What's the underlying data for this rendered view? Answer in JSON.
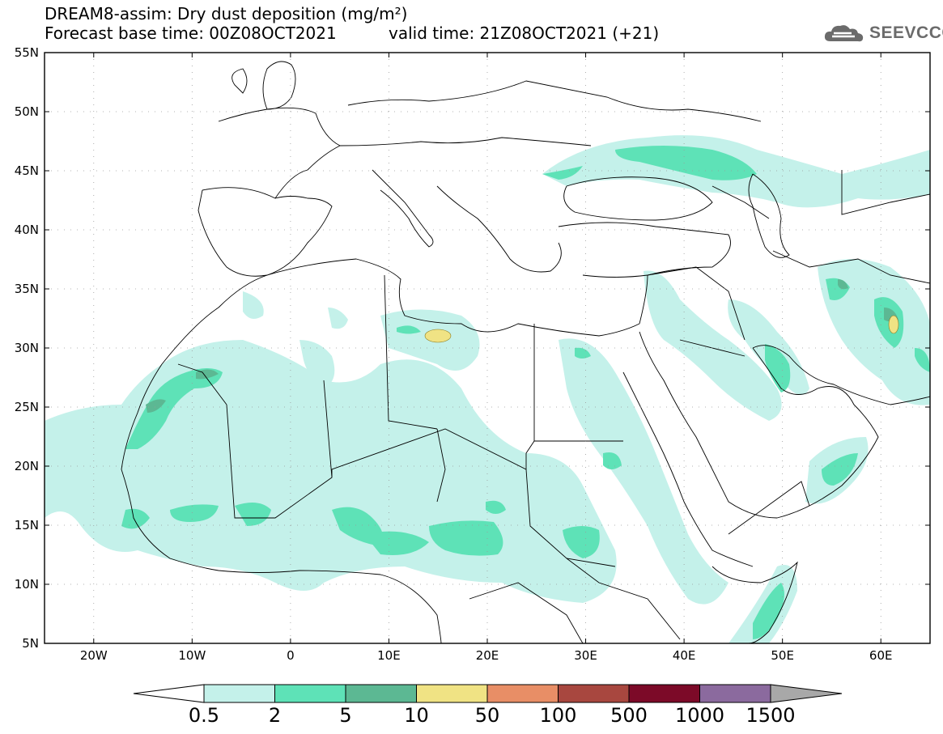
{
  "title": {
    "line1": "DREAM8-assim: Dry dust deposition (mg/m²)",
    "line2_base": "Forecast base time: 00Z08OCT2021",
    "line2_valid": "valid time: 21Z08OCT2021 (+21)"
  },
  "logo": {
    "text": "SEEVCCC",
    "icon": "cloud-logo-icon"
  },
  "axes": {
    "lat_labels": [
      "55N",
      "50N",
      "45N",
      "40N",
      "35N",
      "30N",
      "25N",
      "20N",
      "15N",
      "10N",
      "5N"
    ],
    "lon_labels": [
      "20W",
      "10W",
      "0",
      "10E",
      "20E",
      "30E",
      "40E",
      "50E",
      "60E"
    ]
  },
  "colorbar": {
    "labels": [
      "0.5",
      "2",
      "5",
      "10",
      "50",
      "100",
      "500",
      "1000",
      "1500"
    ],
    "colors": [
      "#c4f1ea",
      "#5ee2b7",
      "#5cb893",
      "#f0e384",
      "#e88e66",
      "#a8473f",
      "#7c0a28",
      "#8b6a9e"
    ],
    "under_color": "#ffffff",
    "over_color": "#a8a8a8"
  },
  "plume_colors": {
    "low": "#c4f1ea",
    "mid": "#5ee2b7",
    "high": "#5cb893",
    "peak": "#f0e384"
  }
}
